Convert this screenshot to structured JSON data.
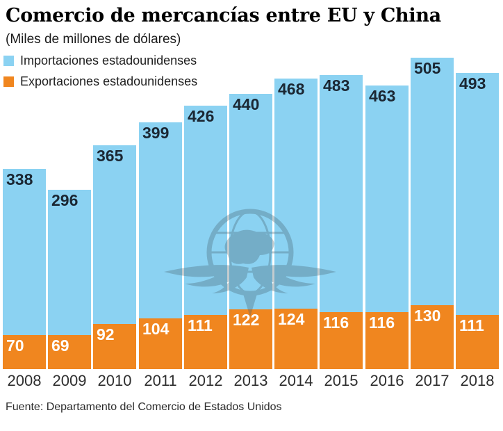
{
  "title": "Comercio de mercancías entre EU y China",
  "subtitle": "(Miles de millones de dólares)",
  "source": "Fuente: Departamento del Comercio de Estados Unidos",
  "legend": [
    {
      "label": "Importaciones estadounidenses",
      "color": "#8BD2F2"
    },
    {
      "label": "Exportaciones estadounidenses",
      "color": "#F0861F"
    }
  ],
  "watermark": {
    "name": "globe-with-eagle-wings",
    "color": "#47626E"
  },
  "colors": {
    "imports_bar": "#8BD2F2",
    "exports_bar": "#F0861F",
    "imports_value_label": "#1B2733",
    "exports_value_label": "#FFFFFF",
    "year_label": "#2E2E2E",
    "background": "#FFFFFF"
  },
  "chart_data": {
    "type": "bar",
    "stacked": true,
    "title": "Comercio de mercancías entre EU y China",
    "unit": "Miles de millones de dólares",
    "categories": [
      "2008",
      "2009",
      "2010",
      "2011",
      "2012",
      "2013",
      "2014",
      "2015",
      "2016",
      "2017",
      "2018"
    ],
    "series": [
      {
        "name": "Importaciones estadounidenses",
        "color": "#8BD2F2",
        "label_color": "#1B2733",
        "values": [
          338,
          296,
          365,
          399,
          426,
          440,
          468,
          483,
          463,
          505,
          493
        ]
      },
      {
        "name": "Exportaciones estadounidenses",
        "color": "#F0861F",
        "label_color": "#FFFFFF",
        "values": [
          70,
          69,
          92,
          104,
          111,
          122,
          124,
          116,
          116,
          130,
          111
        ]
      }
    ],
    "ylim": [
      0,
      650
    ],
    "grid": false,
    "legend_position": "top-left",
    "value_labels": "inside-top-left",
    "xlabel": "",
    "ylabel": ""
  }
}
